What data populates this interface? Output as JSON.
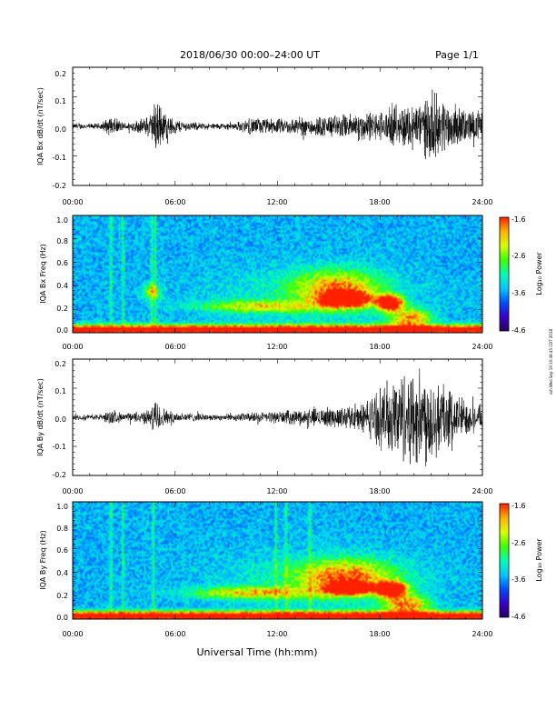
{
  "header": {
    "title": "2018/06/30  00:00–24:00 UT",
    "page": "Page 1/1"
  },
  "footer": {
    "xlabel": "Universal Time (hh:mm)"
  },
  "side_stamp": "ssh Wed Sep 19 10:49:45 CDT 2018",
  "colormap": [
    "#2a0060",
    "#3a00c8",
    "#0050ff",
    "#00c8ff",
    "#00ffb0",
    "#40ff00",
    "#d8ff00",
    "#ffb000",
    "#ff2000"
  ],
  "chart_data": [
    {
      "type": "line",
      "panel": "bx-waveform",
      "ylabel": "IQA Bx dB/dt (nT/sec)",
      "xticks": [
        "00:00",
        "06:00",
        "12:00",
        "18:00",
        "24:00"
      ],
      "yticks": [
        "0.2",
        "0.1",
        "0.0",
        "-0.1",
        "-0.2"
      ],
      "xlim": [
        0,
        24
      ],
      "ylim": [
        -0.21,
        0.21
      ],
      "units": {
        "x": "hours UT",
        "y": "nT/sec"
      },
      "envelope": {
        "hours": [
          0,
          1.5,
          2.3,
          3,
          4,
          4.6,
          4.9,
          5.3,
          5.7,
          6.5,
          8,
          9.5,
          10.5,
          12,
          13,
          14,
          15,
          16,
          17,
          17.5,
          18,
          18.5,
          19.5,
          20.5,
          21,
          21.5,
          22,
          23,
          23.5,
          24
        ],
        "amplitude": [
          0.012,
          0.012,
          0.04,
          0.015,
          0.03,
          0.05,
          0.12,
          0.07,
          0.04,
          0.02,
          0.012,
          0.015,
          0.035,
          0.03,
          0.035,
          0.04,
          0.045,
          0.05,
          0.06,
          0.06,
          0.06,
          0.07,
          0.09,
          0.11,
          0.14,
          0.12,
          0.1,
          0.07,
          0.06,
          0.07
        ]
      }
    },
    {
      "type": "heatmap",
      "panel": "bx-spectrogram",
      "ylabel": "IQA Bx Freq (Hz)",
      "xticks": [
        "00:00",
        "06:00",
        "12:00",
        "18:00",
        "24:00"
      ],
      "yticks": [
        "1.0",
        "0.8",
        "0.6",
        "0.4",
        "0.2",
        "0.0"
      ],
      "xlim": [
        0,
        24
      ],
      "ylim": [
        0,
        1.0
      ],
      "units": {
        "x": "hours UT",
        "y": "Hz"
      },
      "colorbar": {
        "label": "Log₁₀ Power",
        "ticks": [
          "-1.6",
          "-2.6",
          "-3.6",
          "-4.6"
        ],
        "range": [
          -4.6,
          -1.6
        ]
      },
      "features": [
        {
          "h": 16,
          "f": 0.28,
          "dh": 1.3,
          "df": 0.06,
          "amp": 1.1
        },
        {
          "h": 18.6,
          "f": 0.25,
          "dh": 0.7,
          "df": 0.06,
          "amp": 1.2
        },
        {
          "h": 15.5,
          "f": 0.38,
          "dh": 2.5,
          "df": 0.15,
          "amp": 0.5
        },
        {
          "h": 11,
          "f": 0.22,
          "dh": 3.5,
          "df": 0.05,
          "amp": 0.4
        },
        {
          "h": 4.6,
          "f": 0.35,
          "dh": 0.5,
          "df": 0.06,
          "amp": 0.4
        },
        {
          "h": 19.8,
          "f": 0.12,
          "dh": 1.2,
          "df": 0.08,
          "amp": 0.55
        }
      ],
      "vertical_bands": [
        2.2,
        2.9,
        4.6,
        4.8
      ],
      "baseline": {
        "f": 0.02,
        "df": 0.04,
        "amp": 0.9
      }
    },
    {
      "type": "line",
      "panel": "by-waveform",
      "ylabel": "IQA By dB/dt (nT/sec)",
      "xticks": [
        "00:00",
        "06:00",
        "12:00",
        "18:00",
        "24:00"
      ],
      "yticks": [
        "0.2",
        "0.1",
        "0.0",
        "-0.1",
        "-0.2"
      ],
      "xlim": [
        0,
        24
      ],
      "ylim": [
        -0.21,
        0.21
      ],
      "units": {
        "x": "hours UT",
        "y": "nT/sec"
      },
      "envelope": {
        "hours": [
          0,
          1.5,
          2.3,
          3,
          4,
          4.6,
          4.9,
          5.3,
          5.7,
          6.5,
          8,
          9.5,
          10.5,
          12,
          13,
          14,
          15,
          16,
          17,
          17.5,
          18,
          18.5,
          19.5,
          20.5,
          21,
          21.5,
          22,
          23,
          23.5,
          24
        ],
        "amplitude": [
          0.012,
          0.012,
          0.03,
          0.015,
          0.025,
          0.035,
          0.08,
          0.04,
          0.025,
          0.02,
          0.012,
          0.015,
          0.02,
          0.025,
          0.03,
          0.035,
          0.04,
          0.045,
          0.06,
          0.09,
          0.12,
          0.15,
          0.2,
          0.2,
          0.2,
          0.17,
          0.12,
          0.08,
          0.05,
          0.05
        ]
      }
    },
    {
      "type": "heatmap",
      "panel": "by-spectrogram",
      "ylabel": "IQA By Freq (Hz)",
      "xticks": [
        "00:00",
        "06:00",
        "12:00",
        "18:00",
        "24:00"
      ],
      "yticks": [
        "1.0",
        "0.8",
        "0.6",
        "0.4",
        "0.2",
        "0.0"
      ],
      "xlim": [
        0,
        24
      ],
      "ylim": [
        0,
        1.0
      ],
      "units": {
        "x": "hours UT",
        "y": "Hz"
      },
      "colorbar": {
        "label": "Log₁₀ Power",
        "ticks": [
          "-1.6",
          "-2.6",
          "-3.6",
          "-4.6"
        ],
        "range": [
          -4.6,
          -1.6
        ]
      },
      "features": [
        {
          "h": 16.2,
          "f": 0.26,
          "dh": 1.2,
          "df": 0.05,
          "amp": 1.1
        },
        {
          "h": 18.7,
          "f": 0.25,
          "dh": 0.8,
          "df": 0.06,
          "amp": 1.2
        },
        {
          "h": 16,
          "f": 0.36,
          "dh": 2.8,
          "df": 0.15,
          "amp": 0.55
        },
        {
          "h": 10.5,
          "f": 0.22,
          "dh": 3.5,
          "df": 0.05,
          "amp": 0.45
        },
        {
          "h": 19.6,
          "f": 0.12,
          "dh": 1.3,
          "df": 0.08,
          "amp": 0.6
        }
      ],
      "vertical_bands": [
        2.2,
        2.9,
        4.7,
        11.9,
        12.5,
        13.9
      ],
      "baseline": {
        "f": 0.02,
        "df": 0.04,
        "amp": 0.9
      }
    }
  ]
}
